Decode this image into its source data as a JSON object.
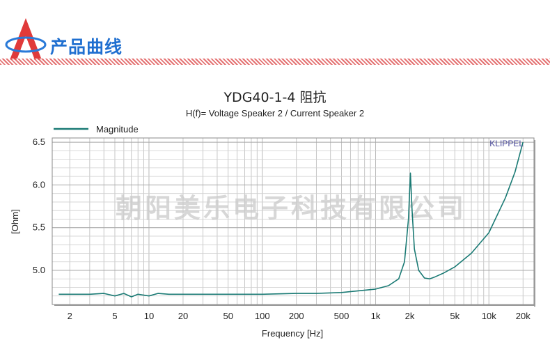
{
  "header": {
    "title": "产品曲线"
  },
  "watermark": "朝阳美乐电子科技有限公司",
  "chart_data": {
    "type": "line",
    "title": "YDG40-1-4 阻抗",
    "subtitle": "H(f)= Voltage Speaker 2 / Current Speaker 2",
    "xlabel": "Frequency [Hz]",
    "ylabel": "[Ohm]",
    "xscale": "log",
    "xlim": [
      1.4,
      25000
    ],
    "ylim": [
      4.6,
      6.55
    ],
    "grid": true,
    "legend_position": "top-left",
    "brand_label": "KLIPPEL",
    "x_ticks": [
      {
        "value": 2,
        "label": "2"
      },
      {
        "value": 5,
        "label": "5"
      },
      {
        "value": 10,
        "label": "10"
      },
      {
        "value": 20,
        "label": "20"
      },
      {
        "value": 50,
        "label": "50"
      },
      {
        "value": 100,
        "label": "100"
      },
      {
        "value": 200,
        "label": "200"
      },
      {
        "value": 500,
        "label": "500"
      },
      {
        "value": 1000,
        "label": "1k"
      },
      {
        "value": 2000,
        "label": "2k"
      },
      {
        "value": 5000,
        "label": "5k"
      },
      {
        "value": 10000,
        "label": "10k"
      },
      {
        "value": 20000,
        "label": "20k"
      }
    ],
    "y_ticks": [
      {
        "value": 5.0,
        "label": "5.0"
      },
      {
        "value": 5.5,
        "label": "5.5"
      },
      {
        "value": 6.0,
        "label": "6.0"
      },
      {
        "value": 6.5,
        "label": "6.5"
      }
    ],
    "series": [
      {
        "name": "Magnitude",
        "color": "#1a7a74",
        "x": [
          1.6,
          2,
          3,
          4,
          5,
          6,
          7,
          8,
          10,
          12,
          15,
          20,
          30,
          50,
          100,
          200,
          300,
          500,
          700,
          1000,
          1300,
          1600,
          1800,
          1950,
          2030,
          2100,
          2200,
          2400,
          2700,
          3000,
          3300,
          4000,
          5000,
          7000,
          10000,
          14000,
          17000,
          20000
        ],
        "y": [
          4.72,
          4.72,
          4.72,
          4.73,
          4.7,
          4.73,
          4.69,
          4.72,
          4.7,
          4.73,
          4.72,
          4.72,
          4.72,
          4.72,
          4.72,
          4.73,
          4.73,
          4.74,
          4.76,
          4.78,
          4.82,
          4.9,
          5.1,
          5.6,
          6.14,
          5.7,
          5.25,
          5.0,
          4.91,
          4.9,
          4.92,
          4.97,
          5.04,
          5.2,
          5.44,
          5.85,
          6.15,
          6.5
        ]
      }
    ]
  }
}
